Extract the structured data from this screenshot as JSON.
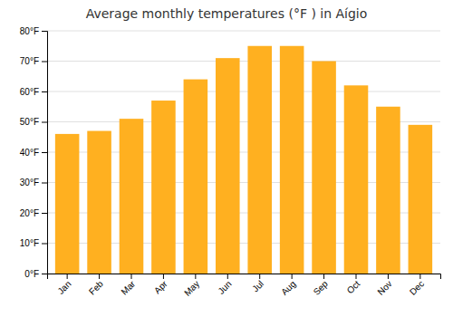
{
  "chart_data": {
    "type": "bar",
    "title": "Average monthly temperatures (°F ) in Aí­gio",
    "categories": [
      "Jan",
      "Feb",
      "Mar",
      "Apr",
      "May",
      "Jun",
      "Jul",
      "Aug",
      "Sep",
      "Oct",
      "Nov",
      "Dec"
    ],
    "values": [
      46,
      47,
      51,
      57,
      64,
      71,
      75,
      75,
      70,
      62,
      55,
      49
    ],
    "color": "#FFB020",
    "ylim": [
      0,
      80
    ],
    "yticks": [
      {
        "value": 0,
        "label": "0°F"
      },
      {
        "value": 10,
        "label": "10°F"
      },
      {
        "value": 20,
        "label": "20°F"
      },
      {
        "value": 30,
        "label": "30°F"
      },
      {
        "value": 40,
        "label": "40°F"
      },
      {
        "value": 50,
        "label": "50°F"
      },
      {
        "value": 60,
        "label": "60°F"
      },
      {
        "value": 70,
        "label": "70°F"
      },
      {
        "value": 80,
        "label": "80°F"
      }
    ],
    "grid": true
  }
}
